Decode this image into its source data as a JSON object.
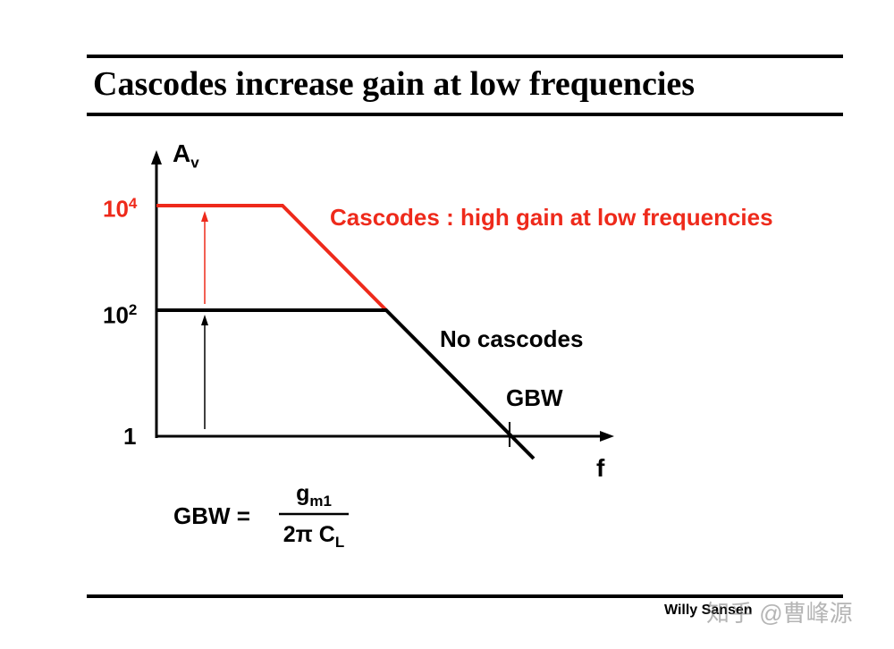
{
  "title": "Cascodes increase gain at low frequencies",
  "axes": {
    "y_label_main": "A",
    "y_label_sub": "v",
    "x_label": "f"
  },
  "ticks": {
    "y_top_base": "10",
    "y_top_exp": "4",
    "y_mid_base": "10",
    "y_mid_exp": "2",
    "y_low": "1"
  },
  "annotations": {
    "cascode": "Cascodes : high gain at low frequencies",
    "no_cascode": "No cascodes",
    "gbw": "GBW"
  },
  "formula": {
    "lhs": "GBW =",
    "num_main": "g",
    "num_sub": "m1",
    "den_main": "2π C",
    "den_sub": "L"
  },
  "footer": "Willy Sansen",
  "watermark": "知乎 @曹峰源",
  "colors": {
    "cascode": "#ee2a1b",
    "no_cascode": "#000000"
  }
}
